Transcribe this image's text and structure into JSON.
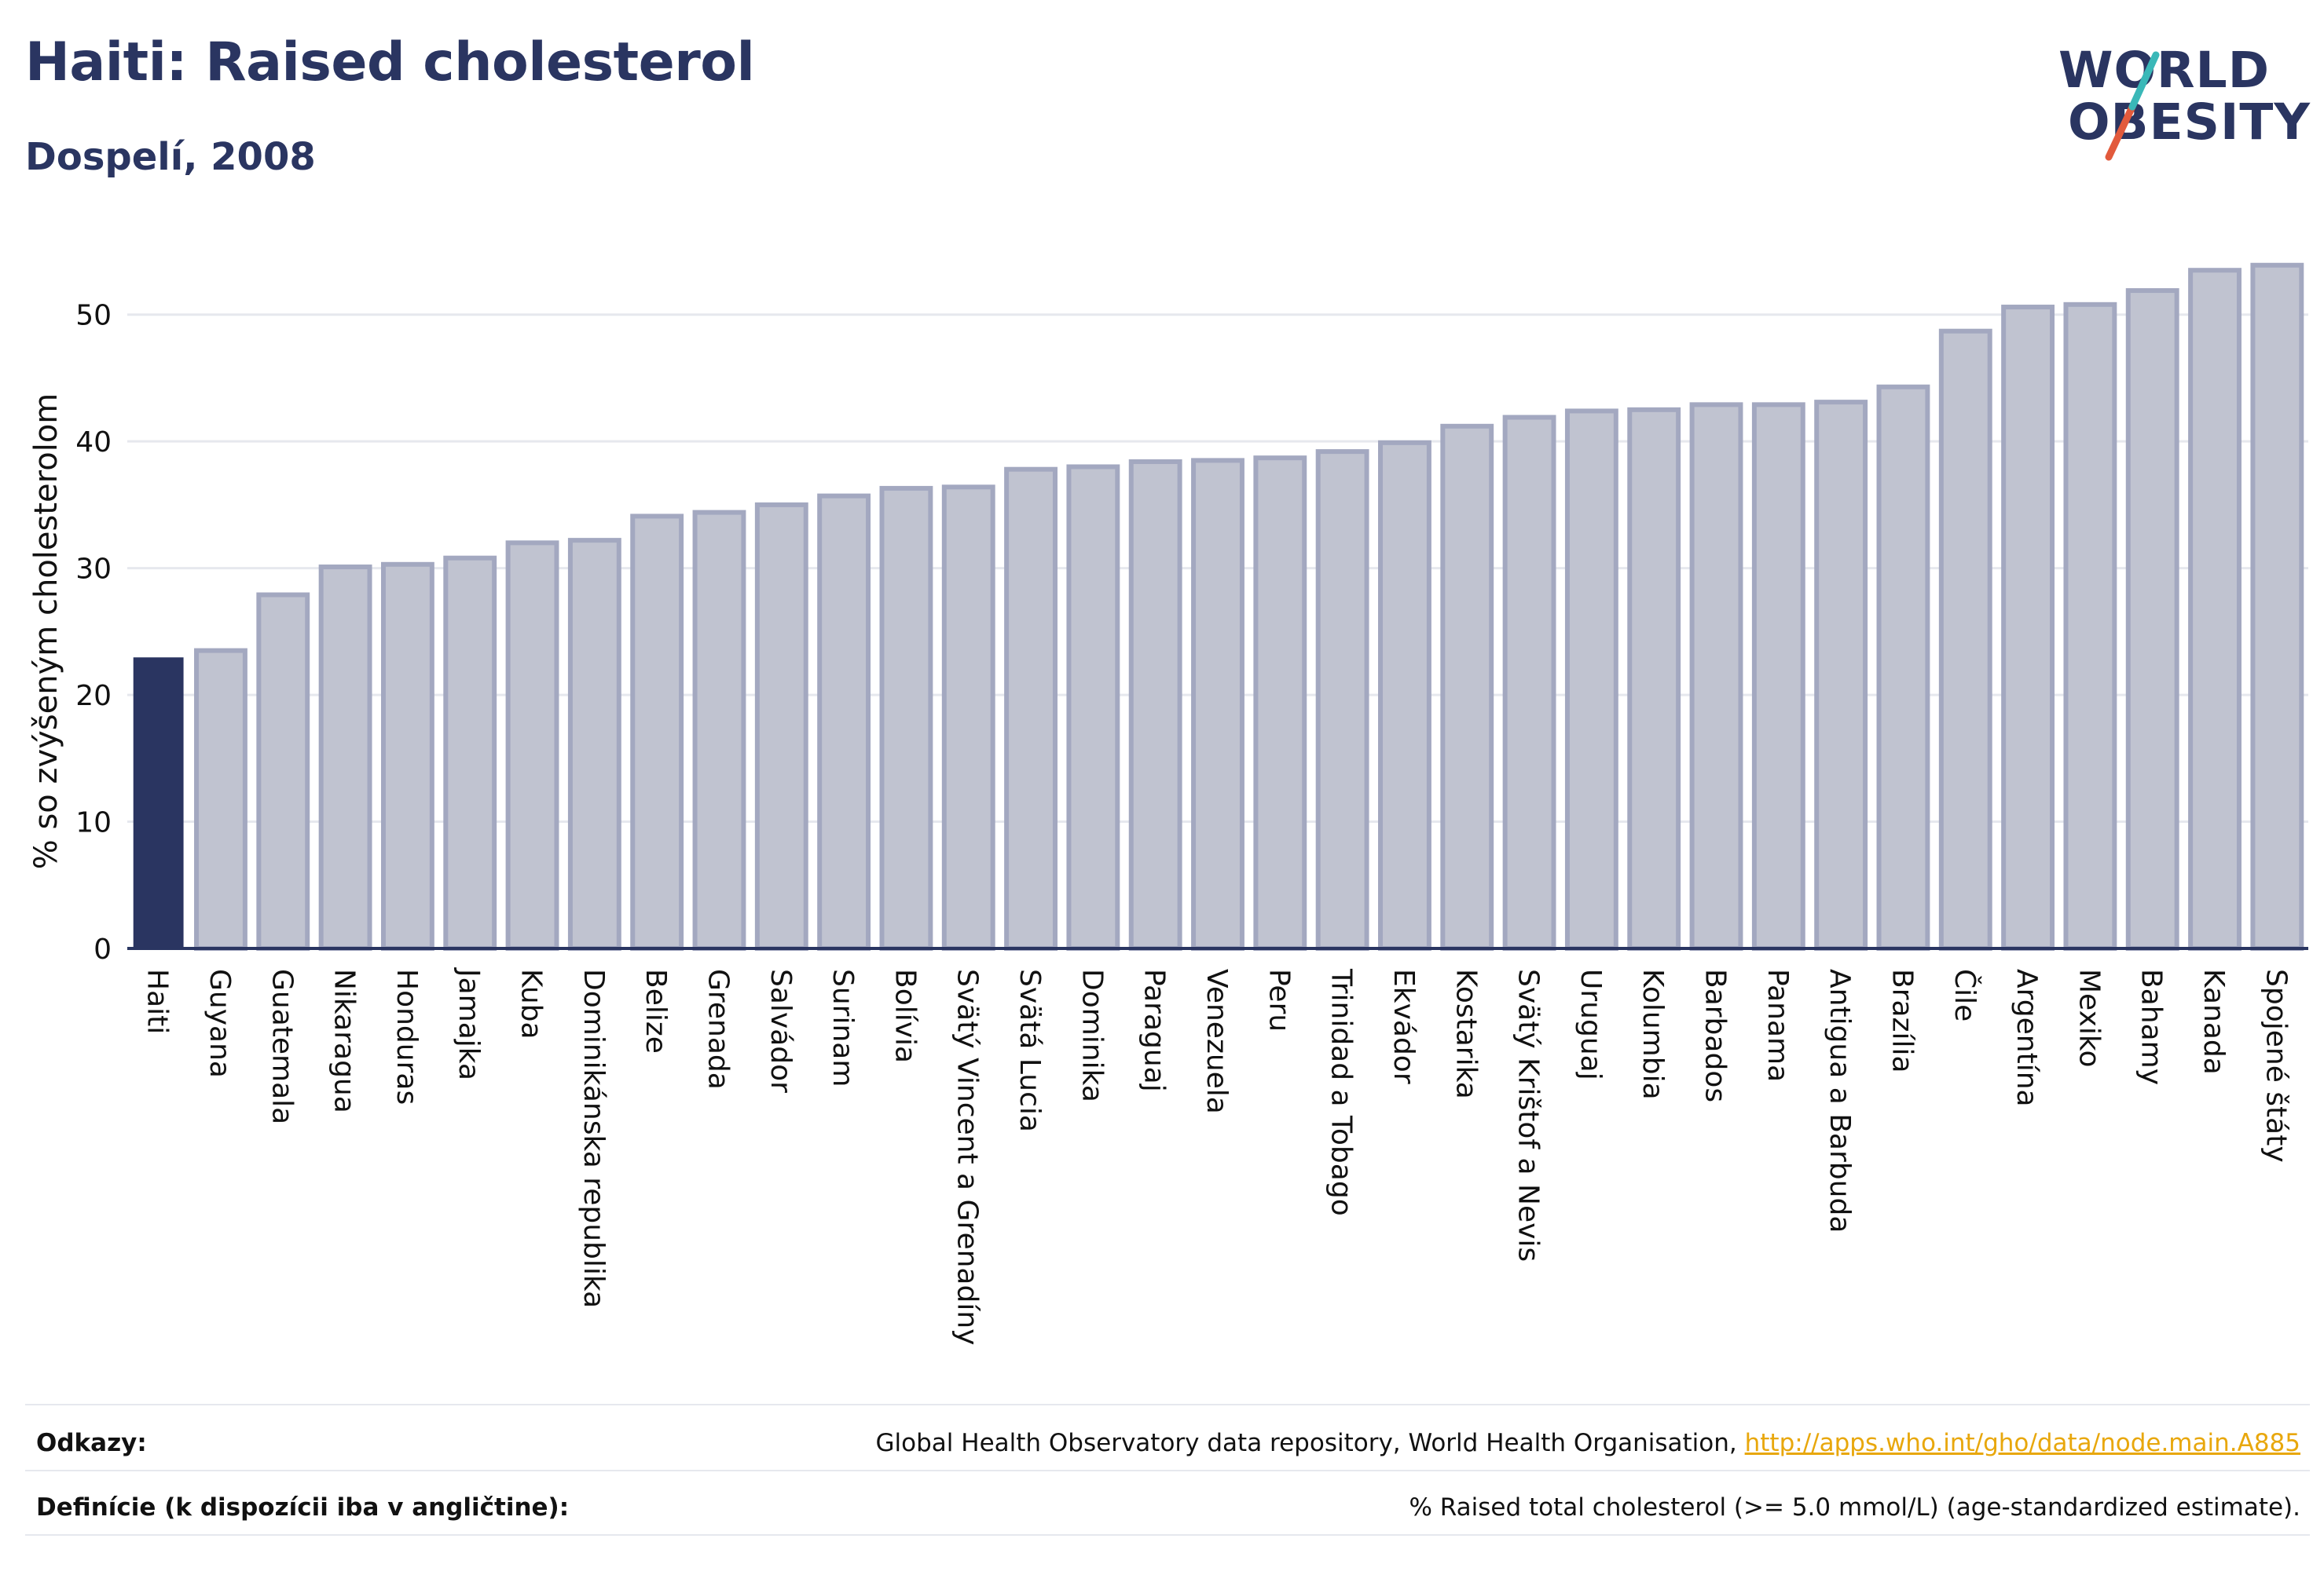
{
  "header": {
    "title": "Haiti: Raised cholesterol",
    "subtitle": "Dospelí, 2008"
  },
  "logo": {
    "line1": "WORLD",
    "line2": "OBESITY",
    "slash_colors": [
      "#e25a3c",
      "#3ab8b8"
    ]
  },
  "colors": {
    "highlight": "#2a3561",
    "bar_fill": "#c0c3d0",
    "bar_stroke": "#a3a8c0",
    "axis": "#2a3561",
    "grid": "#e6e8ee",
    "link": "#e8a70c"
  },
  "chart_data": {
    "type": "bar",
    "ylabel": "% so zvýšeným cholesterolom",
    "xlabel": "",
    "ylim": [
      0,
      55
    ],
    "yticks": [
      0,
      10,
      20,
      30,
      40,
      50
    ],
    "grid": true,
    "highlight": "Haiti",
    "categories": [
      "Haiti",
      "Guyana",
      "Guatemala",
      "Nikaragua",
      "Honduras",
      "Jamajka",
      "Kuba",
      "Dominikánska republika",
      "Belize",
      "Grenada",
      "Salvádor",
      "Surinam",
      "Bolívia",
      "Svätý Vincent a Grenadíny",
      "Svätá Lucia",
      "Dominika",
      "Paraguaj",
      "Venezuela",
      "Peru",
      "Trinidad a Tobago",
      "Ekvádor",
      "Kostarika",
      "Svätý Krištof a Nevis",
      "Uruguaj",
      "Kolumbia",
      "Barbados",
      "Panama",
      "Antigua a Barbuda",
      "Brazília",
      "Čile",
      "Argentína",
      "Mexiko",
      "Bahamy",
      "Kanada",
      "Spojené štáty"
    ],
    "values": [
      22.9,
      23.5,
      27.9,
      30.1,
      30.3,
      30.8,
      32.0,
      32.2,
      34.1,
      34.4,
      35.0,
      35.7,
      36.3,
      36.4,
      37.8,
      38.0,
      38.4,
      38.5,
      38.7,
      39.2,
      39.9,
      41.2,
      41.9,
      42.4,
      42.5,
      42.9,
      42.9,
      43.1,
      44.3,
      48.7,
      50.6,
      50.8,
      51.9,
      53.5,
      53.9
    ]
  },
  "footer": {
    "references_label": "Odkazy:",
    "references_text": "Global Health Observatory data repository, World Health Organisation, ",
    "references_link": "http://apps.who.int/gho/data/node.main.A885",
    "definitions_label": "Definície (k dispozícii iba v angličtine):",
    "definitions_text": "% Raised total cholesterol (>= 5.0 mmol/L) (age-standardized estimate)."
  }
}
